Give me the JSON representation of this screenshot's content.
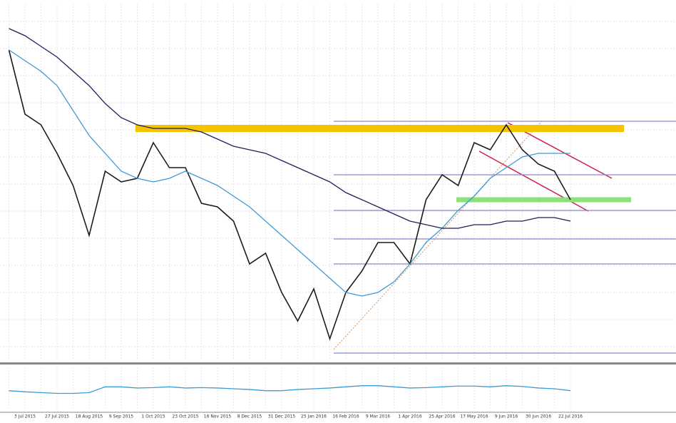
{
  "chart_data": [
    {
      "type": "line",
      "categories": [
        null,
        "3 Jul 2015",
        null,
        "27 Jul 2015",
        null,
        "18 Aug 2015",
        null,
        "9 Sep 2015",
        null,
        "1 Oct 2015",
        null,
        "23 Oct 2015",
        null,
        "16 Nov 2015",
        null,
        "8 Dec 2015",
        null,
        "31 Dec 2015",
        null,
        "25 Jan 2016",
        null,
        "16 Feb 2016",
        null,
        "9 Mar 2016",
        null,
        "1 Apr 2016",
        null,
        "25 Apr 2016",
        null,
        "17 May 2016",
        null,
        "9 Jun 2016",
        null,
        "30 Jun 2016",
        null,
        "22 Jul 2016"
      ],
      "series": [
        {
          "color": "#1c1c1c",
          "values": [
            87,
            69,
            66,
            58,
            49,
            35,
            53,
            50,
            51,
            61,
            54,
            54,
            44,
            43,
            39,
            27,
            30,
            19,
            11,
            20,
            6,
            19,
            25,
            33,
            33,
            27,
            45,
            52,
            49,
            61,
            59,
            66,
            59,
            55,
            53,
            45
          ]
        },
        {
          "color": "#3d9bd6",
          "values": [
            87,
            84,
            81,
            77,
            70,
            63,
            58,
            53,
            51,
            50,
            51,
            53,
            51,
            49,
            46,
            43,
            39,
            35,
            31,
            27,
            23,
            19,
            18,
            19,
            22,
            27,
            33,
            37,
            42,
            46,
            51,
            54,
            57,
            58,
            58,
            58
          ]
        },
        {
          "color": "#1e1e5a",
          "values": [
            93,
            91,
            88,
            85,
            81,
            77,
            72,
            68,
            66,
            65,
            65,
            65,
            64,
            62,
            60,
            59,
            58,
            56,
            54,
            52,
            50,
            47,
            45,
            43,
            41,
            39,
            38,
            37,
            37,
            38,
            38,
            39,
            39,
            40,
            40,
            39
          ]
        }
      ],
      "levels": [
        67,
        52,
        42,
        34,
        27,
        2
      ],
      "level_color": "#8a8ac8",
      "zones": [
        {
          "value": 65,
          "color": "#f5c400"
        },
        {
          "value": 45,
          "color": "#8ee07a"
        }
      ],
      "ylim": [
        0,
        100
      ],
      "grid": true
    },
    {
      "type": "line",
      "series": [
        {
          "color": "#3d9bd6",
          "values": [
            45,
            42,
            40,
            38,
            38,
            40,
            55,
            55,
            52,
            53,
            55,
            52,
            53,
            52,
            50,
            48,
            45,
            45,
            48,
            50,
            52,
            55,
            58,
            58,
            55,
            52,
            53,
            55,
            57,
            57,
            55,
            58,
            56,
            52,
            50,
            45
          ]
        }
      ],
      "ylim": [
        0,
        100
      ]
    }
  ]
}
